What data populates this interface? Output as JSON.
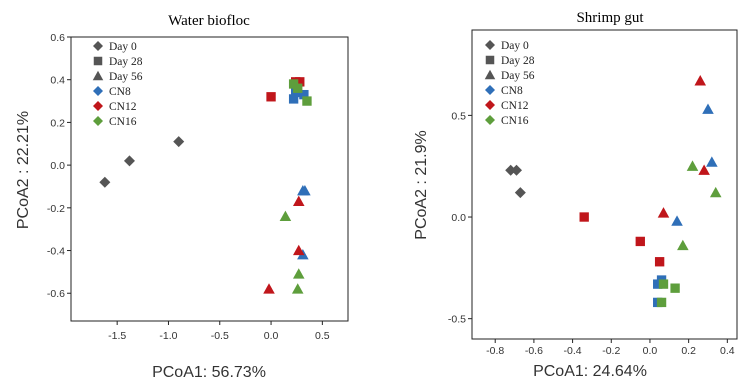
{
  "chart_data": [
    {
      "type": "scatter",
      "title": "Water biofloc",
      "xlabel": "PCoA1: 56.73%",
      "ylabel": "PCoA2 :  22.21%",
      "xlim": [
        -1.95,
        0.75
      ],
      "ylim": [
        -0.73,
        0.6
      ],
      "xticks": [
        -1.5,
        -1.0,
        -0.5,
        0.0,
        0.5
      ],
      "xtick_labels": [
        "-1.5",
        "-1.0",
        "-0.5",
        "0.0",
        "0.5"
      ],
      "yticks": [
        -0.6,
        -0.4,
        -0.2,
        0.0,
        0.2,
        0.4,
        0.6
      ],
      "ytick_labels": [
        "-0.6",
        "-0.4",
        "-0.2",
        "0.0",
        "0.2",
        "0.4",
        "0.6"
      ],
      "legend_position": "top-left",
      "legend": [
        {
          "label": "Day 0",
          "marker": "diamond",
          "color": "#555555"
        },
        {
          "label": "Day 28",
          "marker": "square",
          "color": "#555555"
        },
        {
          "label": "Day 56",
          "marker": "triangle",
          "color": "#555555"
        },
        {
          "label": "CN8",
          "marker": "diamond",
          "color": "#2f6fb8"
        },
        {
          "label": "CN12",
          "marker": "diamond",
          "color": "#c0161b"
        },
        {
          "label": "CN16",
          "marker": "diamond",
          "color": "#5e9e3c"
        }
      ],
      "points": [
        {
          "x": -1.62,
          "y": -0.08,
          "day": "Day 0",
          "group": "Day 0"
        },
        {
          "x": -1.38,
          "y": 0.02,
          "day": "Day 0",
          "group": "Day 0"
        },
        {
          "x": -0.9,
          "y": 0.11,
          "day": "Day 0",
          "group": "Day 0"
        },
        {
          "x": 0.0,
          "y": 0.32,
          "day": "Day 28",
          "group": "CN12"
        },
        {
          "x": 0.24,
          "y": 0.39,
          "day": "Day 28",
          "group": "CN12"
        },
        {
          "x": 0.28,
          "y": 0.39,
          "day": "Day 28",
          "group": "CN12"
        },
        {
          "x": 0.22,
          "y": 0.31,
          "day": "Day 28",
          "group": "CN8"
        },
        {
          "x": 0.24,
          "y": 0.34,
          "day": "Day 28",
          "group": "CN8"
        },
        {
          "x": 0.32,
          "y": 0.33,
          "day": "Day 28",
          "group": "CN8"
        },
        {
          "x": 0.22,
          "y": 0.38,
          "day": "Day 28",
          "group": "CN16"
        },
        {
          "x": 0.26,
          "y": 0.36,
          "day": "Day 28",
          "group": "CN16"
        },
        {
          "x": 0.35,
          "y": 0.3,
          "day": "Day 28",
          "group": "CN16"
        },
        {
          "x": 0.31,
          "y": -0.12,
          "day": "Day 56",
          "group": "CN8"
        },
        {
          "x": 0.33,
          "y": -0.12,
          "day": "Day 56",
          "group": "CN8"
        },
        {
          "x": 0.31,
          "y": -0.42,
          "day": "Day 56",
          "group": "CN8"
        },
        {
          "x": 0.27,
          "y": -0.17,
          "day": "Day 56",
          "group": "CN12"
        },
        {
          "x": 0.27,
          "y": -0.4,
          "day": "Day 56",
          "group": "CN12"
        },
        {
          "x": -0.02,
          "y": -0.58,
          "day": "Day 56",
          "group": "CN12"
        },
        {
          "x": 0.14,
          "y": -0.24,
          "day": "Day 56",
          "group": "CN16"
        },
        {
          "x": 0.27,
          "y": -0.51,
          "day": "Day 56",
          "group": "CN16"
        },
        {
          "x": 0.26,
          "y": -0.58,
          "day": "Day 56",
          "group": "CN16"
        }
      ]
    },
    {
      "type": "scatter",
      "title": "Shrimp gut",
      "xlabel": "PCoA1: 24.64%",
      "ylabel": "PCoA2 :  21.9%",
      "xlim": [
        -0.92,
        0.45
      ],
      "ylim": [
        -0.6,
        0.92
      ],
      "xticks": [
        -0.8,
        -0.6,
        -0.4,
        -0.2,
        0.0,
        0.2,
        0.4
      ],
      "xtick_labels": [
        "-0.8",
        "-0.6",
        "-0.4",
        "-0.2",
        "0.0",
        "0.2",
        "0.4"
      ],
      "yticks": [
        -0.5,
        0.0,
        0.5
      ],
      "ytick_labels": [
        "-0.5",
        "0.0",
        "0.5"
      ],
      "legend_position": "top-left",
      "legend": [
        {
          "label": "Day 0",
          "marker": "diamond",
          "color": "#555555"
        },
        {
          "label": "Day 28",
          "marker": "square",
          "color": "#555555"
        },
        {
          "label": "Day 56",
          "marker": "triangle",
          "color": "#555555"
        },
        {
          "label": "CN8",
          "marker": "diamond",
          "color": "#2f6fb8"
        },
        {
          "label": "CN12",
          "marker": "diamond",
          "color": "#c0161b"
        },
        {
          "label": "CN16",
          "marker": "diamond",
          "color": "#5e9e3c"
        }
      ],
      "points": [
        {
          "x": -0.72,
          "y": 0.23,
          "day": "Day 0",
          "group": "Day 0"
        },
        {
          "x": -0.69,
          "y": 0.23,
          "day": "Day 0",
          "group": "Day 0"
        },
        {
          "x": -0.67,
          "y": 0.12,
          "day": "Day 0",
          "group": "Day 0"
        },
        {
          "x": -0.34,
          "y": 0.0,
          "day": "Day 28",
          "group": "CN12"
        },
        {
          "x": -0.05,
          "y": -0.12,
          "day": "Day 28",
          "group": "CN12"
        },
        {
          "x": 0.05,
          "y": -0.22,
          "day": "Day 28",
          "group": "CN12"
        },
        {
          "x": 0.04,
          "y": -0.33,
          "day": "Day 28",
          "group": "CN8"
        },
        {
          "x": 0.06,
          "y": -0.31,
          "day": "Day 28",
          "group": "CN8"
        },
        {
          "x": 0.04,
          "y": -0.42,
          "day": "Day 28",
          "group": "CN8"
        },
        {
          "x": 0.07,
          "y": -0.33,
          "day": "Day 28",
          "group": "CN16"
        },
        {
          "x": 0.13,
          "y": -0.35,
          "day": "Day 28",
          "group": "CN16"
        },
        {
          "x": 0.06,
          "y": -0.42,
          "day": "Day 28",
          "group": "CN16"
        },
        {
          "x": 0.3,
          "y": 0.53,
          "day": "Day 56",
          "group": "CN8"
        },
        {
          "x": 0.32,
          "y": 0.27,
          "day": "Day 56",
          "group": "CN8"
        },
        {
          "x": 0.14,
          "y": -0.02,
          "day": "Day 56",
          "group": "CN8"
        },
        {
          "x": 0.26,
          "y": 0.67,
          "day": "Day 56",
          "group": "CN12"
        },
        {
          "x": 0.28,
          "y": 0.23,
          "day": "Day 56",
          "group": "CN12"
        },
        {
          "x": 0.07,
          "y": 0.02,
          "day": "Day 56",
          "group": "CN12"
        },
        {
          "x": 0.22,
          "y": 0.25,
          "day": "Day 56",
          "group": "CN16"
        },
        {
          "x": 0.34,
          "y": 0.12,
          "day": "Day 56",
          "group": "CN16"
        },
        {
          "x": 0.17,
          "y": -0.14,
          "day": "Day 56",
          "group": "CN16"
        }
      ]
    }
  ],
  "colors": {
    "Day 0": "#555555",
    "CN8": "#2f6fb8",
    "CN12": "#c0161b",
    "CN16": "#5e9e3c"
  }
}
